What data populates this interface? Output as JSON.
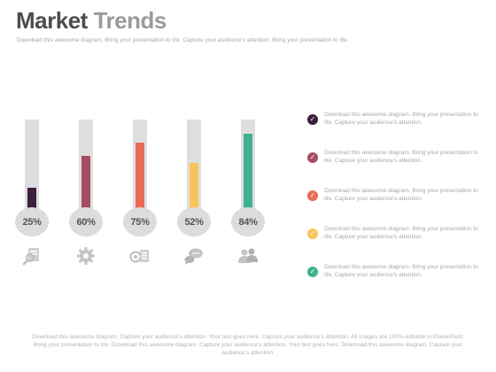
{
  "title": {
    "word1": "Market",
    "word2": "Trends"
  },
  "subtitle": "Download this awesome diagram. Bring your presentation to life. Capture your audience’s attention. Bring your presentation to life.",
  "items": [
    {
      "percent_label": "25%",
      "value": 25,
      "color": "#3b1f3b",
      "icon": "search-document-icon",
      "legend": "Download this awesome diagram. Bring your presentation to life. Capture your audience’s attention."
    },
    {
      "percent_label": "60%",
      "value": 60,
      "color": "#a64d61",
      "icon": "gear-icon",
      "legend": "Download this awesome diagram. Bring your presentation to life. Capture your audience’s attention."
    },
    {
      "percent_label": "75%",
      "value": 75,
      "color": "#ea6a55",
      "icon": "target-document-icon",
      "legend": "Download this awesome diagram. Bring your presentation to life. Capture your audience’s attention."
    },
    {
      "percent_label": "52%",
      "value": 52,
      "color": "#f7c45a",
      "icon": "chat-icon",
      "legend": "Download this awesome diagram. Bring your presentation to life. Capture your audience’s attention."
    },
    {
      "percent_label": "84%",
      "value": 84,
      "color": "#3fb08f",
      "icon": "people-icon",
      "legend": "Download this awesome diagram. Bring your presentation to life. Capture your audience’s attention."
    }
  ],
  "footer": "Download this awesome diagram. Capture your audience’s attention. Your text goes here. Capture your audience’s attention. All images are 100% editable in PowerPoint. Bring your presentation to life. Download this awesome diagram. Capture your audience’s attention. Your text goes here. Download this awesome diagram. Capture your audience’s attention."
}
